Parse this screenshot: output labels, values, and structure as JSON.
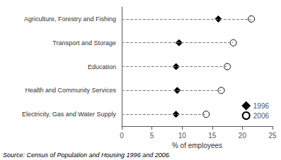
{
  "chart_data": {
    "type": "scatter",
    "orientation": "horizontal",
    "categories": [
      "Agriculture, Forestry and Fishing",
      "Transport and Storage",
      "Education",
      "Health and Community Services",
      "Electricity, Gas and Water Supply"
    ],
    "series": [
      {
        "name": "1996",
        "values": [
          16.0,
          9.5,
          9.0,
          9.2,
          9.0
        ],
        "color": "black",
        "marker": "diamond"
      },
      {
        "name": "2006",
        "values": [
          21.5,
          18.5,
          17.5,
          16.5,
          14.0
        ],
        "color": "white",
        "marker": "circle",
        "line_style": "dashed"
      }
    ],
    "xlabel": "% of employees",
    "xlim": [
      0,
      25
    ],
    "xticks": [
      0,
      5,
      10,
      15,
      20,
      25
    ],
    "annotation": "Source: Census of Population and Housing 1996 and 2006.",
    "legend": "lower right",
    "grid": false
  }
}
